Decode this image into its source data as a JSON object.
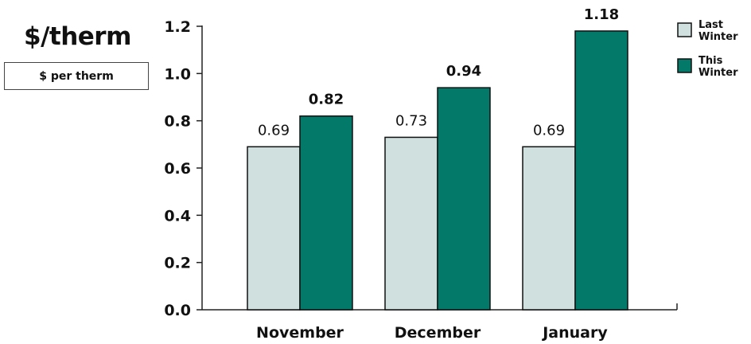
{
  "title": "$/therm",
  "unit_label": "$ per therm",
  "colors": {
    "last_winter": "#cfe0df",
    "this_winter": "#03796a",
    "outline": "#111111"
  },
  "chart_data": {
    "type": "bar",
    "title": "$/therm",
    "ylabel": "$ per therm",
    "xlabel": "",
    "categories": [
      "November",
      "December",
      "January"
    ],
    "series": [
      {
        "name": "Last Winter",
        "values": [
          0.69,
          0.73,
          0.69
        ]
      },
      {
        "name": "This Winter",
        "values": [
          0.82,
          0.94,
          1.18
        ]
      }
    ],
    "data_labels": {
      "last_winter": [
        "0.69",
        "0.73",
        "0.69"
      ],
      "this_winter": [
        "0.82",
        "0.94",
        "1.18"
      ]
    },
    "ylim": [
      0,
      1.2
    ],
    "yticks": [
      "0.0",
      "0.2",
      "0.4",
      "0.6",
      "0.8",
      "1.0",
      "1.2"
    ],
    "legend_labels": [
      [
        "Last",
        "Winter"
      ],
      [
        "This",
        "Winter"
      ]
    ],
    "legend_position": "top-right",
    "grid": false
  }
}
